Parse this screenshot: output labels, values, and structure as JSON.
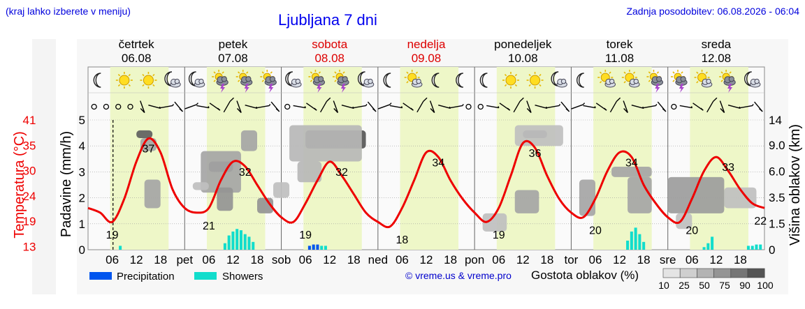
{
  "header": {
    "left_note": "(kraj lahko izberete v meniju)",
    "title": "Ljubljana 7 dni",
    "updated": "Zadnja posodobitev: 06.08.2026 - 06:04"
  },
  "days": [
    {
      "name": "četrtek",
      "date": "06.08",
      "weekend": false,
      "short": ""
    },
    {
      "name": "petek",
      "date": "07.08",
      "weekend": false,
      "short": "pet"
    },
    {
      "name": "sobota",
      "date": "08.08",
      "weekend": true,
      "short": "sob"
    },
    {
      "name": "nedelja",
      "date": "09.08",
      "weekend": true,
      "short": "ned"
    },
    {
      "name": "ponedeljek",
      "date": "10.08",
      "weekend": false,
      "short": "pon"
    },
    {
      "name": "torek",
      "date": "11.08",
      "weekend": false,
      "short": "tor"
    },
    {
      "name": "sreda",
      "date": "12.08",
      "weekend": false,
      "short": "sre"
    }
  ],
  "legend": {
    "precipitation": "Precipitation",
    "showers": "Showers",
    "credit": "© vreme.us & vreme.pro",
    "cloud_title": "Gostota oblakov (%)",
    "cloud_ticks": [
      "10",
      "25",
      "50",
      "75",
      "90",
      "100"
    ]
  },
  "colors": {
    "temperature": "#ee0000",
    "precipitation": "#0055ee",
    "showers": "#11ddcc",
    "daylight": "#eef7c8",
    "weekend_text": "#dd0000"
  },
  "chart_data": {
    "type": "line",
    "temperature_axis": {
      "label": "Temperatura (°C)",
      "ticks": [
        "41",
        "35",
        "30",
        "24",
        "19",
        "13"
      ],
      "range": [
        13,
        41
      ]
    },
    "precip_axis": {
      "label": "Padavine (mm/h)",
      "ticks": [
        "0",
        "1",
        "2",
        "3",
        "4",
        "5"
      ],
      "range": [
        0,
        5
      ]
    },
    "cloud_axis": {
      "label": "Višina oblakov (km)",
      "ticks": [
        "0",
        "1.5",
        "3.5",
        "6.0",
        "9.0",
        "14"
      ]
    },
    "x_hour_ticks": [
      "06",
      "12",
      "18"
    ],
    "temperature_series": {
      "hours": [
        0,
        3,
        6,
        9,
        12,
        15,
        18,
        21,
        24,
        27,
        30,
        33,
        36,
        39,
        42,
        45,
        48,
        51,
        54,
        57,
        60,
        63,
        66,
        69,
        72,
        75,
        78,
        81,
        84,
        87,
        90,
        93,
        96,
        99,
        102,
        105,
        108,
        111,
        114,
        117,
        120,
        123,
        126,
        129,
        132,
        135,
        138,
        141,
        144,
        147,
        150,
        153,
        156,
        159,
        162,
        165,
        168
      ],
      "values": [
        22,
        21,
        19,
        24,
        32,
        37,
        34,
        26,
        22,
        21,
        22,
        28,
        32,
        31,
        27,
        23,
        20,
        19,
        23,
        28,
        32,
        29,
        25,
        21,
        19,
        18,
        22,
        28,
        34,
        33,
        28,
        24,
        21,
        19,
        22,
        29,
        36,
        35,
        29,
        24,
        21,
        20,
        24,
        30,
        34,
        33,
        27,
        23,
        20,
        19,
        24,
        30,
        33,
        30,
        26,
        23,
        22
      ]
    },
    "temperature_labels": [
      {
        "hour": 6,
        "value": "19"
      },
      {
        "hour": 15,
        "value": "37"
      },
      {
        "hour": 30,
        "value": "21"
      },
      {
        "hour": 39,
        "value": "32"
      },
      {
        "hour": 54,
        "value": "19"
      },
      {
        "hour": 63,
        "value": "32"
      },
      {
        "hour": 78,
        "value": "18"
      },
      {
        "hour": 87,
        "value": "34"
      },
      {
        "hour": 102,
        "value": "19"
      },
      {
        "hour": 111,
        "value": "36"
      },
      {
        "hour": 126,
        "value": "20"
      },
      {
        "hour": 135,
        "value": "34"
      },
      {
        "hour": 150,
        "value": "20"
      },
      {
        "hour": 159,
        "value": "33"
      },
      {
        "hour": 167,
        "value": "22"
      }
    ],
    "precipitation_bars": [
      {
        "hour": 55,
        "value": 0.15
      },
      {
        "hour": 56,
        "value": 0.2
      },
      {
        "hour": 57,
        "value": 0.2
      }
    ],
    "shower_bars": [
      {
        "hour": 8,
        "value": 0.15
      },
      {
        "hour": 34,
        "value": 0.25
      },
      {
        "hour": 35,
        "value": 0.55
      },
      {
        "hour": 36,
        "value": 0.7
      },
      {
        "hour": 37,
        "value": 0.8
      },
      {
        "hour": 38,
        "value": 0.75
      },
      {
        "hour": 39,
        "value": 0.6
      },
      {
        "hour": 40,
        "value": 0.5
      },
      {
        "hour": 41,
        "value": 0.3
      },
      {
        "hour": 56,
        "value": 0.15
      },
      {
        "hour": 58,
        "value": 0.15
      },
      {
        "hour": 59,
        "value": 0.15
      },
      {
        "hour": 134,
        "value": 0.35
      },
      {
        "hour": 135,
        "value": 0.7
      },
      {
        "hour": 136,
        "value": 0.85
      },
      {
        "hour": 137,
        "value": 0.6
      },
      {
        "hour": 138,
        "value": 0.3
      },
      {
        "hour": 153,
        "value": 0.1
      },
      {
        "hour": 154,
        "value": 0.25
      },
      {
        "hour": 155,
        "value": 0.5
      },
      {
        "hour": 164,
        "value": 0.15
      },
      {
        "hour": 165,
        "value": 0.15
      },
      {
        "hour": 166,
        "value": 0.2
      },
      {
        "hour": 167,
        "value": 0.2
      }
    ],
    "cloud_blobs": [
      {
        "h0": 12,
        "h1": 16,
        "c0": 4.3,
        "c1": 4.6,
        "density": 80
      },
      {
        "h0": 13,
        "h1": 17,
        "c0": 3.8,
        "c1": 4.3,
        "density": 40
      },
      {
        "h0": 14,
        "h1": 18,
        "c0": 1.6,
        "c1": 2.7,
        "density": 40
      },
      {
        "h0": 30,
        "h1": 36,
        "c0": 3.0,
        "c1": 3.4,
        "density": 80
      },
      {
        "h0": 28,
        "h1": 38,
        "c0": 2.2,
        "c1": 3.8,
        "density": 40
      },
      {
        "h0": 26,
        "h1": 30,
        "c0": 2.3,
        "c1": 2.6,
        "density": 25
      },
      {
        "h0": 32,
        "h1": 36,
        "c0": 1.5,
        "c1": 2.4,
        "density": 50
      },
      {
        "h0": 38,
        "h1": 42,
        "c0": 3.8,
        "c1": 4.6,
        "density": 40
      },
      {
        "h0": 42,
        "h1": 46,
        "c0": 1.4,
        "c1": 2.0,
        "density": 50
      },
      {
        "h0": 46,
        "h1": 50,
        "c0": 2.0,
        "c1": 2.6,
        "density": 25
      },
      {
        "h0": 54,
        "h1": 69,
        "c0": 3.9,
        "c1": 4.6,
        "density": 85
      },
      {
        "h0": 50,
        "h1": 68,
        "c0": 3.4,
        "c1": 4.8,
        "density": 30
      },
      {
        "h0": 52,
        "h1": 58,
        "c0": 2.6,
        "c1": 3.4,
        "density": 30
      },
      {
        "h0": 108,
        "h1": 114,
        "c0": 4.3,
        "c1": 4.6,
        "density": 75
      },
      {
        "h0": 106,
        "h1": 118,
        "c0": 4.0,
        "c1": 4.8,
        "density": 25
      },
      {
        "h0": 98,
        "h1": 104,
        "c0": 0.7,
        "c1": 1.4,
        "density": 25
      },
      {
        "h0": 106,
        "h1": 112,
        "c0": 1.4,
        "c1": 2.3,
        "density": 40
      },
      {
        "h0": 122,
        "h1": 126,
        "c0": 1.3,
        "c1": 2.7,
        "density": 40
      },
      {
        "h0": 130,
        "h1": 140,
        "c0": 2.8,
        "c1": 3.2,
        "density": 40
      },
      {
        "h0": 134,
        "h1": 140,
        "c0": 1.4,
        "c1": 2.8,
        "density": 40
      },
      {
        "h0": 144,
        "h1": 158,
        "c0": 1.4,
        "c1": 2.8,
        "density": 45
      },
      {
        "h0": 146,
        "h1": 150,
        "c0": 0.8,
        "c1": 1.4,
        "density": 25
      },
      {
        "h0": 158,
        "h1": 166,
        "c0": 1.6,
        "c1": 2.4,
        "density": 25
      }
    ],
    "weather_icons": [
      "moon",
      "sun",
      "sun",
      "cloud-moon",
      "cloud-moon",
      "storm",
      "storm",
      "storm",
      "cloud-moon",
      "storm",
      "storm",
      "cloud-moon",
      "moon",
      "cloud-sun",
      "moon",
      "moon",
      "moon",
      "sun",
      "sun",
      "cloud-moon",
      "moon",
      "cloud-sun",
      "cloud-sun",
      "storm",
      "storm",
      "cloud-sun",
      "storm",
      "cloud-moon"
    ]
  }
}
